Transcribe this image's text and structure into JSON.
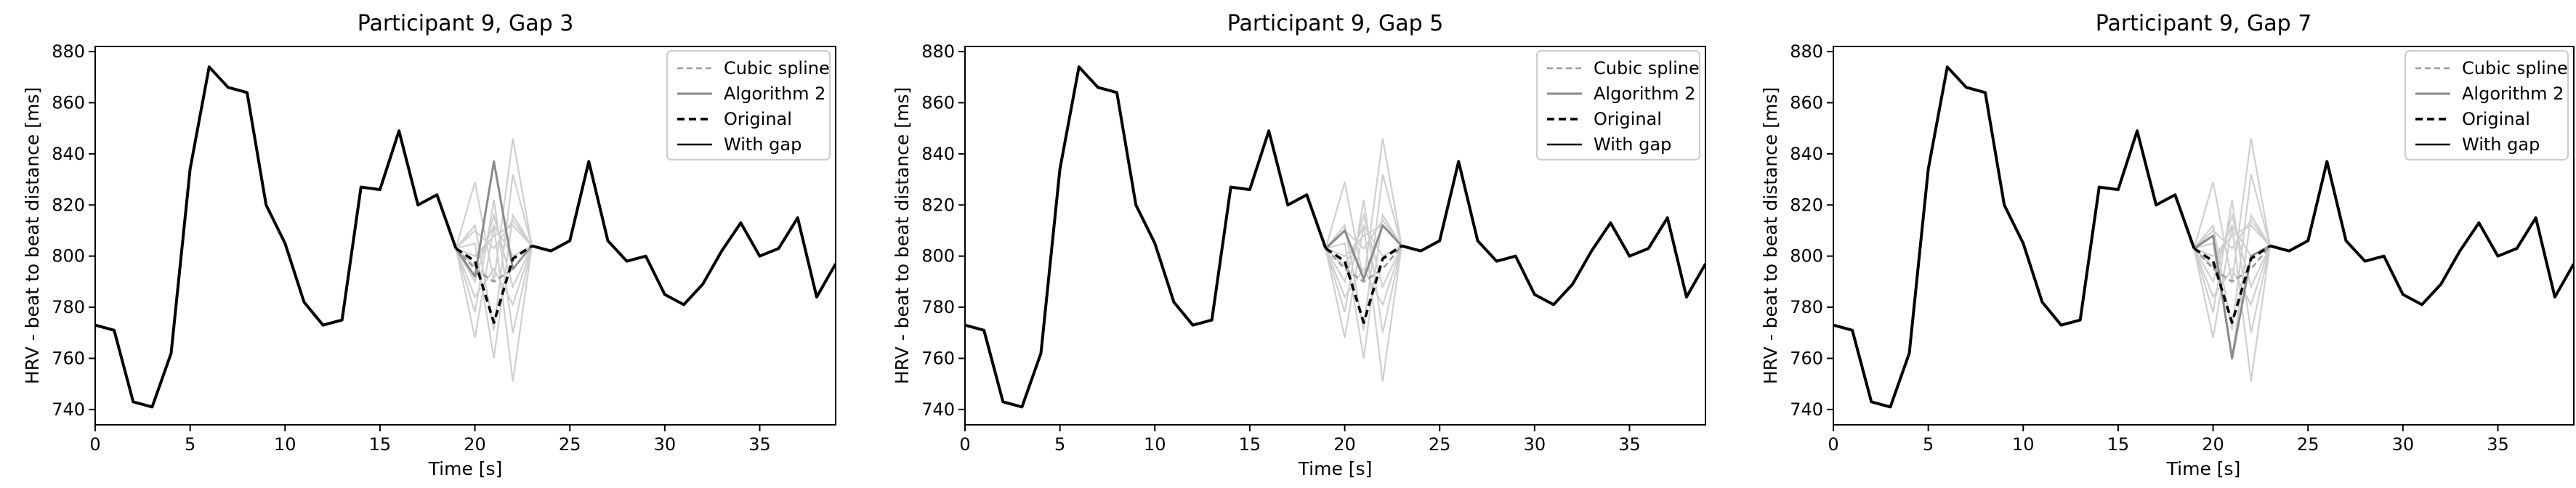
{
  "chart_data": [
    {
      "type": "line",
      "title": "Participant 9, Gap 3",
      "xlabel": "Time [s]",
      "ylabel": "HRV - beat to beat distance [ms]",
      "xlim": [
        0,
        39
      ],
      "ylim": [
        734,
        882
      ],
      "xticks": [
        0,
        5,
        10,
        15,
        20,
        25,
        30,
        35
      ],
      "yticks": [
        740,
        760,
        780,
        800,
        820,
        840,
        860,
        880
      ],
      "legend_position": "top-right",
      "legend": [
        "Cubic spline",
        "Algorithm 2",
        "Original",
        "With gap"
      ],
      "series": [
        {
          "name": "With gap",
          "style": "solid-black",
          "x": [
            0,
            1,
            2,
            3,
            4,
            5,
            6,
            7,
            8,
            9,
            10,
            11,
            12,
            13,
            14,
            15,
            16,
            17,
            18,
            19,
            null,
            23,
            24,
            25,
            26,
            27,
            28,
            29,
            30,
            31,
            32,
            33,
            34,
            35,
            36,
            37,
            38,
            39
          ],
          "y": [
            773,
            771,
            743,
            741,
            762,
            834,
            874,
            866,
            864,
            820,
            805,
            782,
            773,
            775,
            827,
            826,
            849,
            820,
            824,
            803,
            null,
            804,
            802,
            806,
            837,
            806,
            798,
            800,
            785,
            781,
            789,
            802,
            813,
            800,
            803,
            815,
            784,
            797
          ]
        },
        {
          "name": "Original",
          "style": "dashed-black",
          "x": [
            19,
            20,
            21,
            22,
            23
          ],
          "y": [
            803,
            798,
            774,
            799,
            804
          ]
        },
        {
          "name": "Cubic spline",
          "style": "dashed-gray",
          "x": [
            19,
            20,
            21,
            22,
            23
          ],
          "y": [
            803,
            795,
            790,
            795,
            804
          ]
        },
        {
          "name": "Algorithm 2",
          "style": "solid-gray",
          "x": [
            19,
            20,
            21,
            22,
            23
          ],
          "y": [
            803,
            792,
            837,
            795,
            804
          ]
        }
      ],
      "spaghetti_series": [
        {
          "x": [
            19,
            20,
            21,
            22,
            23
          ],
          "y": [
            803,
            829,
            790,
            846,
            804
          ]
        },
        {
          "x": [
            19,
            20,
            21,
            22,
            23
          ],
          "y": [
            803,
            768,
            812,
            751,
            804
          ]
        },
        {
          "x": [
            19,
            20,
            21,
            22,
            23
          ],
          "y": [
            803,
            812,
            771,
            832,
            804
          ]
        },
        {
          "x": [
            19,
            20,
            21,
            22,
            23
          ],
          "y": [
            803,
            778,
            822,
            770,
            804
          ]
        },
        {
          "x": [
            19,
            20,
            21,
            22,
            23
          ],
          "y": [
            803,
            805,
            760,
            816,
            804
          ]
        },
        {
          "x": [
            19,
            20,
            21,
            22,
            23
          ],
          "y": [
            803,
            790,
            816,
            788,
            804
          ]
        },
        {
          "x": [
            19,
            20,
            21,
            22,
            23
          ],
          "y": [
            803,
            800,
            808,
            812,
            804
          ]
        },
        {
          "x": [
            19,
            20,
            21,
            22,
            23
          ],
          "y": [
            803,
            784,
            795,
            781,
            804
          ]
        },
        {
          "x": [
            19,
            20,
            21,
            22,
            23
          ],
          "y": [
            803,
            810,
            803,
            814,
            804
          ]
        },
        {
          "x": [
            19,
            20,
            21,
            22,
            23
          ],
          "y": [
            803,
            796,
            812,
            800,
            804
          ]
        }
      ]
    },
    {
      "type": "line",
      "title": "Participant 9, Gap 5",
      "xlabel": "Time [s]",
      "ylabel": "HRV - beat to beat distance [ms]",
      "xlim": [
        0,
        39
      ],
      "ylim": [
        734,
        882
      ],
      "xticks": [
        0,
        5,
        10,
        15,
        20,
        25,
        30,
        35
      ],
      "yticks": [
        740,
        760,
        780,
        800,
        820,
        840,
        860,
        880
      ],
      "legend_position": "top-right",
      "legend": [
        "Cubic spline",
        "Algorithm 2",
        "Original",
        "With gap"
      ],
      "series": [
        {
          "name": "With gap",
          "style": "solid-black",
          "x": [
            0,
            1,
            2,
            3,
            4,
            5,
            6,
            7,
            8,
            9,
            10,
            11,
            12,
            13,
            14,
            15,
            16,
            17,
            18,
            19,
            null,
            23,
            24,
            25,
            26,
            27,
            28,
            29,
            30,
            31,
            32,
            33,
            34,
            35,
            36,
            37,
            38,
            39
          ],
          "y": [
            773,
            771,
            743,
            741,
            762,
            834,
            874,
            866,
            864,
            820,
            805,
            782,
            773,
            775,
            827,
            826,
            849,
            820,
            824,
            803,
            null,
            804,
            802,
            806,
            837,
            806,
            798,
            800,
            785,
            781,
            789,
            802,
            813,
            800,
            803,
            815,
            784,
            797
          ]
        },
        {
          "name": "Original",
          "style": "dashed-black",
          "x": [
            19,
            20,
            21,
            22,
            23
          ],
          "y": [
            803,
            798,
            774,
            799,
            804
          ]
        },
        {
          "name": "Cubic spline",
          "style": "dashed-gray",
          "x": [
            19,
            20,
            21,
            22,
            23
          ],
          "y": [
            803,
            795,
            790,
            795,
            804
          ]
        },
        {
          "name": "Algorithm 2",
          "style": "solid-gray",
          "x": [
            19,
            20,
            21,
            22,
            23
          ],
          "y": [
            803,
            810,
            791,
            812,
            804
          ]
        }
      ],
      "spaghetti_series": [
        {
          "x": [
            19,
            20,
            21,
            22,
            23
          ],
          "y": [
            803,
            829,
            790,
            846,
            804
          ]
        },
        {
          "x": [
            19,
            20,
            21,
            22,
            23
          ],
          "y": [
            803,
            768,
            812,
            751,
            804
          ]
        },
        {
          "x": [
            19,
            20,
            21,
            22,
            23
          ],
          "y": [
            803,
            812,
            771,
            832,
            804
          ]
        },
        {
          "x": [
            19,
            20,
            21,
            22,
            23
          ],
          "y": [
            803,
            778,
            822,
            770,
            804
          ]
        },
        {
          "x": [
            19,
            20,
            21,
            22,
            23
          ],
          "y": [
            803,
            805,
            760,
            816,
            804
          ]
        },
        {
          "x": [
            19,
            20,
            21,
            22,
            23
          ],
          "y": [
            803,
            790,
            816,
            788,
            804
          ]
        },
        {
          "x": [
            19,
            20,
            21,
            22,
            23
          ],
          "y": [
            803,
            800,
            808,
            812,
            804
          ]
        },
        {
          "x": [
            19,
            20,
            21,
            22,
            23
          ],
          "y": [
            803,
            784,
            795,
            781,
            804
          ]
        },
        {
          "x": [
            19,
            20,
            21,
            22,
            23
          ],
          "y": [
            803,
            810,
            803,
            814,
            804
          ]
        },
        {
          "x": [
            19,
            20,
            21,
            22,
            23
          ],
          "y": [
            803,
            796,
            812,
            800,
            804
          ]
        }
      ]
    },
    {
      "type": "line",
      "title": "Participant 9, Gap 7",
      "xlabel": "Time [s]",
      "ylabel": "HRV - beat to beat distance [ms]",
      "xlim": [
        0,
        39
      ],
      "ylim": [
        734,
        882
      ],
      "xticks": [
        0,
        5,
        10,
        15,
        20,
        25,
        30,
        35
      ],
      "yticks": [
        740,
        760,
        780,
        800,
        820,
        840,
        860,
        880
      ],
      "legend_position": "top-right",
      "legend": [
        "Cubic spline",
        "Algorithm 2",
        "Original",
        "With gap"
      ],
      "series": [
        {
          "name": "With gap",
          "style": "solid-black",
          "x": [
            0,
            1,
            2,
            3,
            4,
            5,
            6,
            7,
            8,
            9,
            10,
            11,
            12,
            13,
            14,
            15,
            16,
            17,
            18,
            19,
            null,
            23,
            24,
            25,
            26,
            27,
            28,
            29,
            30,
            31,
            32,
            33,
            34,
            35,
            36,
            37,
            38,
            39
          ],
          "y": [
            773,
            771,
            743,
            741,
            762,
            834,
            874,
            866,
            864,
            820,
            805,
            782,
            773,
            775,
            827,
            826,
            849,
            820,
            824,
            803,
            null,
            804,
            802,
            806,
            837,
            806,
            798,
            800,
            785,
            781,
            789,
            802,
            813,
            800,
            803,
            815,
            784,
            797
          ]
        },
        {
          "name": "Original",
          "style": "dashed-black",
          "x": [
            19,
            20,
            21,
            22,
            23
          ],
          "y": [
            803,
            798,
            774,
            799,
            804
          ]
        },
        {
          "name": "Cubic spline",
          "style": "dashed-gray",
          "x": [
            19,
            20,
            21,
            22,
            23
          ],
          "y": [
            803,
            795,
            790,
            795,
            804
          ]
        },
        {
          "name": "Algorithm 2",
          "style": "solid-gray",
          "x": [
            19,
            20,
            21,
            22,
            23
          ],
          "y": [
            803,
            808,
            760,
            800,
            804
          ]
        }
      ],
      "spaghetti_series": [
        {
          "x": [
            19,
            20,
            21,
            22,
            23
          ],
          "y": [
            803,
            829,
            790,
            846,
            804
          ]
        },
        {
          "x": [
            19,
            20,
            21,
            22,
            23
          ],
          "y": [
            803,
            768,
            812,
            751,
            804
          ]
        },
        {
          "x": [
            19,
            20,
            21,
            22,
            23
          ],
          "y": [
            803,
            812,
            771,
            832,
            804
          ]
        },
        {
          "x": [
            19,
            20,
            21,
            22,
            23
          ],
          "y": [
            803,
            778,
            822,
            770,
            804
          ]
        },
        {
          "x": [
            19,
            20,
            21,
            22,
            23
          ],
          "y": [
            803,
            805,
            760,
            816,
            804
          ]
        },
        {
          "x": [
            19,
            20,
            21,
            22,
            23
          ],
          "y": [
            803,
            790,
            816,
            788,
            804
          ]
        },
        {
          "x": [
            19,
            20,
            21,
            22,
            23
          ],
          "y": [
            803,
            800,
            808,
            812,
            804
          ]
        },
        {
          "x": [
            19,
            20,
            21,
            22,
            23
          ],
          "y": [
            803,
            784,
            795,
            781,
            804
          ]
        },
        {
          "x": [
            19,
            20,
            21,
            22,
            23
          ],
          "y": [
            803,
            810,
            803,
            814,
            804
          ]
        },
        {
          "x": [
            19,
            20,
            21,
            22,
            23
          ],
          "y": [
            803,
            796,
            812,
            800,
            804
          ]
        }
      ]
    }
  ],
  "colors": {
    "with_gap": "#000000",
    "original": "#000000",
    "cubic_spline": "#9a9a9a",
    "algorithm_2": "#8a8a8a",
    "spaghetti": "#cfcfcf",
    "legend_border": "#cccccc"
  }
}
